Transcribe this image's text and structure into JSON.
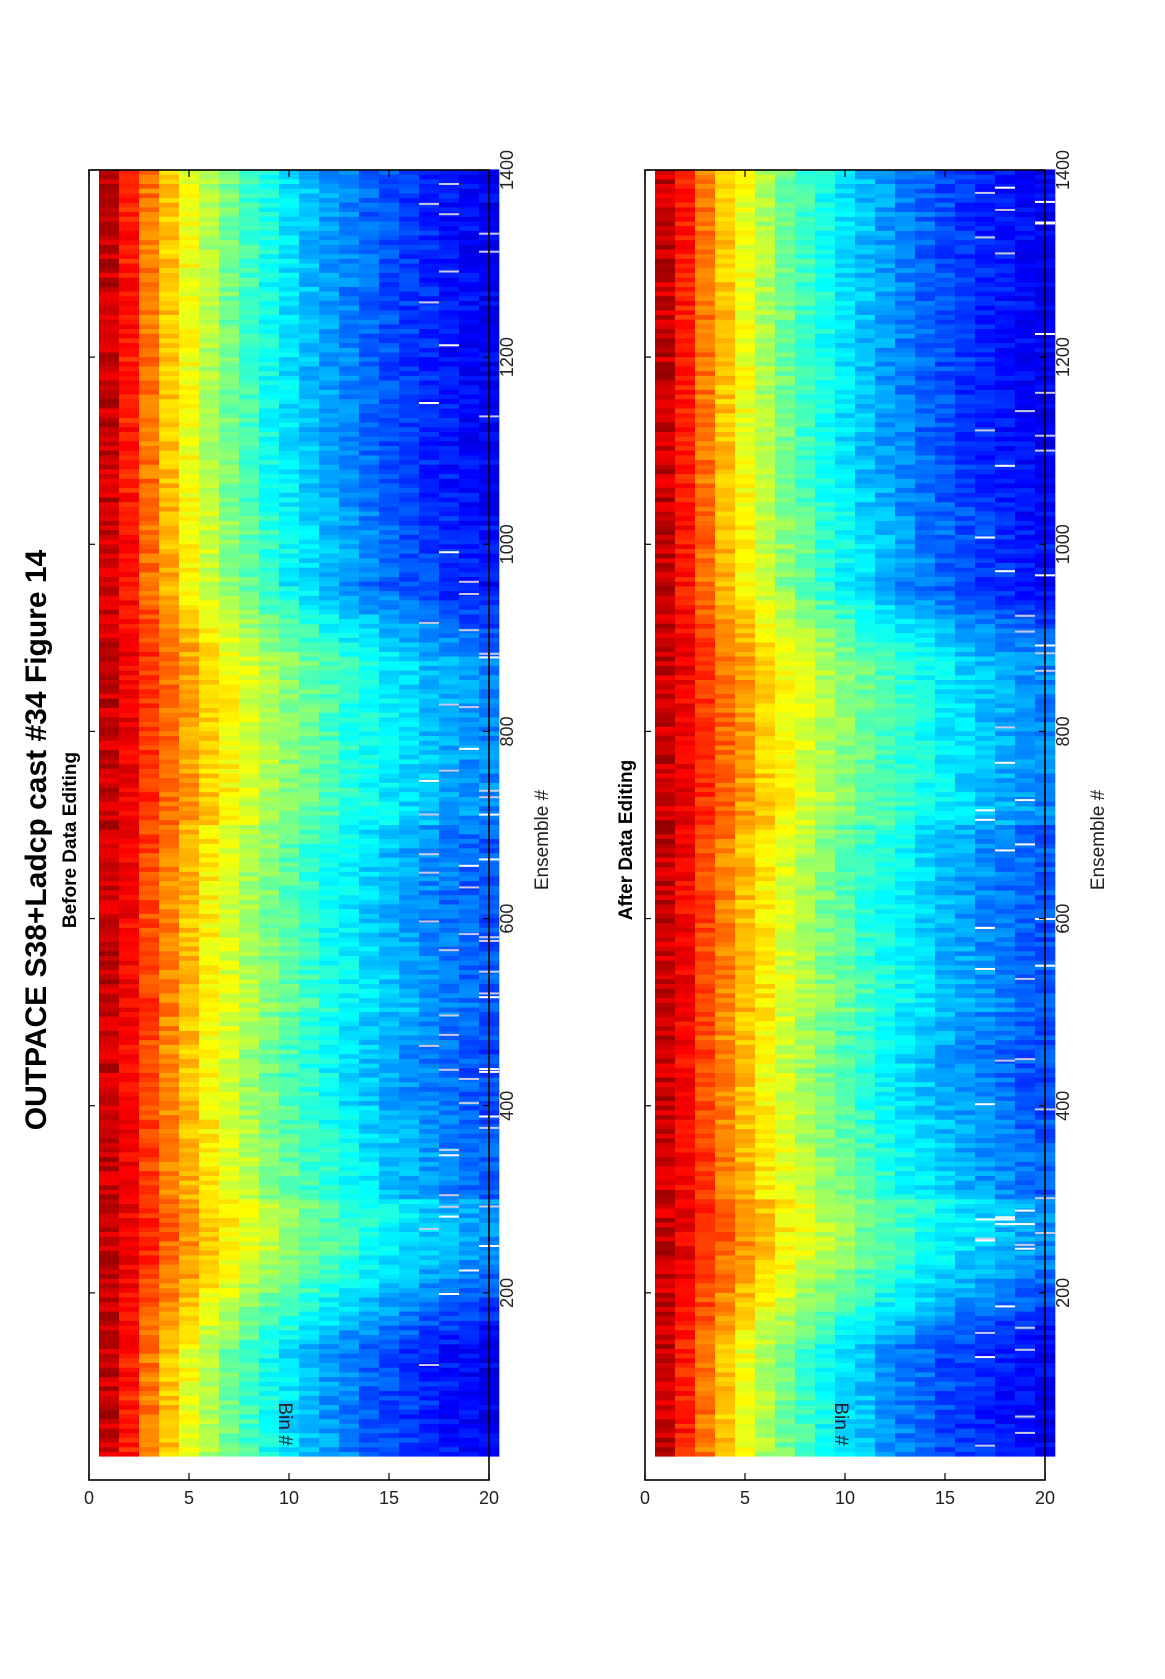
{
  "title": "OUTPACE S38+Ladcp cast #34  Figure 14",
  "chart_data": [
    {
      "type": "heatmap",
      "subtitle": "Before Data Editing",
      "xlabel": "Ensemble #",
      "ylabel": "Bin #",
      "xlim": [
        0,
        1400
      ],
      "ylim": [
        0,
        20
      ],
      "xticks": [
        200,
        400,
        600,
        800,
        1000,
        1200,
        1400
      ],
      "yticks": [
        0,
        5,
        10,
        15,
        20
      ],
      "x_range_data": [
        25,
        1400
      ],
      "colormap": "jet",
      "colormap_stops": [
        "#00008f",
        "#0000ff",
        "#0080ff",
        "#00ffff",
        "#80ff80",
        "#ffff00",
        "#ff8000",
        "#ff0000",
        "#800000"
      ],
      "description_profile_bins": [
        1,
        2,
        3,
        4,
        5,
        6,
        7,
        8,
        9,
        10,
        11,
        12,
        13,
        14,
        15,
        16,
        17,
        18,
        19,
        20
      ],
      "missing_data": true
    },
    {
      "type": "heatmap",
      "subtitle": "After Data Editing",
      "xlabel": "Ensemble #",
      "ylabel": "Bin #",
      "xlim": [
        0,
        1400
      ],
      "ylim": [
        0,
        20
      ],
      "xticks": [
        200,
        400,
        600,
        800,
        1000,
        1200,
        1400
      ],
      "yticks": [
        0,
        5,
        10,
        15,
        20
      ],
      "x_range_data": [
        25,
        1400
      ],
      "colormap": "jet",
      "colormap_stops": [
        "#00008f",
        "#0000ff",
        "#0080ff",
        "#00ffff",
        "#80ff80",
        "#ffff00",
        "#ff8000",
        "#ff0000",
        "#800000"
      ],
      "description_profile_bins": [
        1,
        2,
        3,
        4,
        5,
        6,
        7,
        8,
        9,
        10,
        11,
        12,
        13,
        14,
        15,
        16,
        17,
        18,
        19,
        20
      ],
      "missing_data": true
    }
  ]
}
